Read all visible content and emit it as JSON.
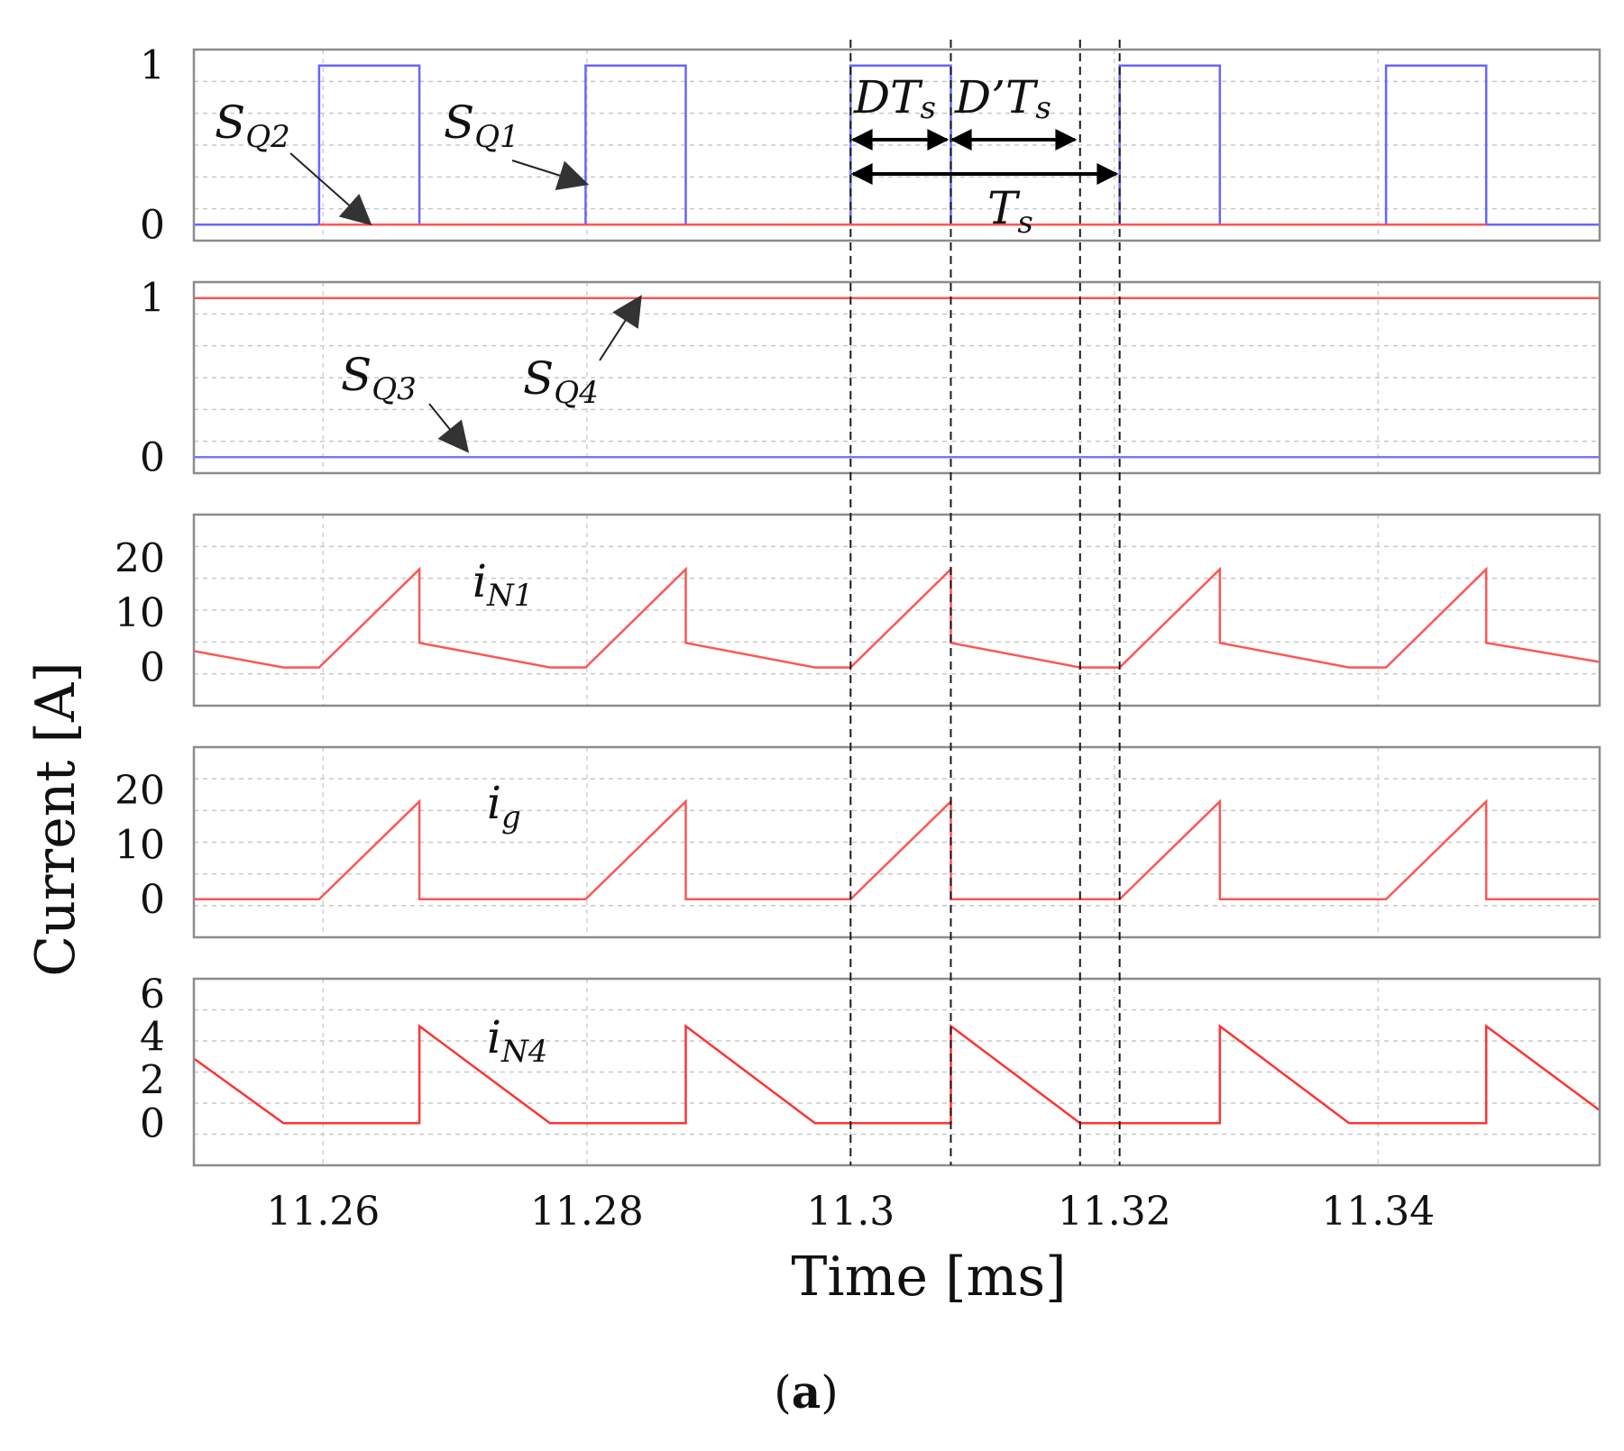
{
  "figure_caption": "a",
  "chart_data": {
    "type": "line",
    "xlabel": "Time [ms]",
    "ylabel": "Current [A]",
    "xlim": [
      11.2502,
      11.3568
    ],
    "xticks": [
      "11.26",
      "11.28",
      "11.3",
      "11.32",
      "11.34"
    ],
    "xtick_values": [
      11.26,
      11.28,
      11.3,
      11.32,
      11.34
    ],
    "period_markers": [
      11.3,
      11.3076,
      11.3174,
      11.3204
    ],
    "period_annotations": {
      "DTs": {
        "base": "DT",
        "sub": "s"
      },
      "DpTs": {
        "base": "D’T",
        "sub": "s"
      },
      "Ts": {
        "base": "T",
        "sub": "s"
      }
    },
    "panels": [
      {
        "id": "switching-q1-q2",
        "ylim": [
          -0.1,
          1.1
        ],
        "yticks": [
          "1",
          "0"
        ],
        "ytick_values": [
          1,
          0
        ],
        "series": [
          {
            "name": "SQ1",
            "base": "S",
            "sub": "Q1",
            "color": "#6666ff",
            "points": [
              [
                11.2502,
                0
              ],
              [
                11.2597,
                0
              ],
              [
                11.2597,
                1
              ],
              [
                11.2673,
                1
              ],
              [
                11.2673,
                0
              ],
              [
                11.2799,
                0
              ],
              [
                11.2799,
                1
              ],
              [
                11.2875,
                1
              ],
              [
                11.2875,
                0
              ],
              [
                11.3,
                0
              ],
              [
                11.3,
                1
              ],
              [
                11.3076,
                1
              ],
              [
                11.3076,
                0
              ],
              [
                11.3204,
                0
              ],
              [
                11.3204,
                1
              ],
              [
                11.328,
                1
              ],
              [
                11.328,
                0
              ],
              [
                11.3406,
                0
              ],
              [
                11.3406,
                1
              ],
              [
                11.3482,
                1
              ],
              [
                11.3482,
                0
              ],
              [
                11.3568,
                0
              ]
            ]
          },
          {
            "name": "SQ2",
            "base": "S",
            "sub": "Q2",
            "color": "#ff5555",
            "points": [
              [
                11.2597,
                0
              ],
              [
                11.2673,
                0
              ],
              [
                11.2799,
                0
              ],
              [
                11.2875,
                0
              ],
              [
                11.3,
                0
              ],
              [
                11.3076,
                0
              ],
              [
                11.3204,
                0
              ],
              [
                11.328,
                0
              ],
              [
                11.3406,
                0
              ],
              [
                11.3482,
                0
              ]
            ]
          }
        ]
      },
      {
        "id": "switching-q3-q4",
        "ylim": [
          -0.1,
          1.1
        ],
        "yticks": [
          "1",
          "0"
        ],
        "ytick_values": [
          1,
          0
        ],
        "series": [
          {
            "name": "SQ4",
            "base": "S",
            "sub": "Q4",
            "color": "#ff5555",
            "points": [
              [
                11.2502,
                1
              ],
              [
                11.3568,
                1
              ]
            ]
          },
          {
            "name": "SQ3",
            "base": "S",
            "sub": "Q3",
            "color": "#7777ff",
            "points": [
              [
                11.2502,
                0
              ],
              [
                11.3568,
                0
              ]
            ]
          }
        ]
      },
      {
        "id": "current-iN1",
        "ylim": [
          -7,
          28
        ],
        "yticks": [
          "20",
          "10",
          "0"
        ],
        "ytick_values": [
          20,
          10,
          0
        ],
        "series": [
          {
            "name": "iN1",
            "base": "i",
            "sub": "N1",
            "color": "#ff5555",
            "points": [
              [
                11.2502,
                3.0
              ],
              [
                11.257,
                0
              ],
              [
                11.2597,
                0
              ],
              [
                11.2673,
                18.0
              ],
              [
                11.2673,
                4.5
              ],
              [
                11.2772,
                0
              ],
              [
                11.2799,
                0
              ],
              [
                11.2875,
                18.0
              ],
              [
                11.2875,
                4.5
              ],
              [
                11.2973,
                0
              ],
              [
                11.3,
                0
              ],
              [
                11.3076,
                18.0
              ],
              [
                11.3076,
                4.5
              ],
              [
                11.3174,
                0
              ],
              [
                11.3204,
                0
              ],
              [
                11.328,
                18.0
              ],
              [
                11.328,
                4.5
              ],
              [
                11.3378,
                0
              ],
              [
                11.3406,
                0
              ],
              [
                11.3482,
                18.0
              ],
              [
                11.3482,
                4.5
              ],
              [
                11.3568,
                1.0
              ]
            ]
          }
        ]
      },
      {
        "id": "current-ig",
        "ylim": [
          -7,
          28
        ],
        "yticks": [
          "20",
          "10",
          "0"
        ],
        "ytick_values": [
          20,
          10,
          0
        ],
        "series": [
          {
            "name": "ig",
            "base": "i",
            "sub": "g",
            "color": "#ff5555",
            "points": [
              [
                11.2502,
                0
              ],
              [
                11.2597,
                0
              ],
              [
                11.2673,
                18.0
              ],
              [
                11.2673,
                0
              ],
              [
                11.2799,
                0
              ],
              [
                11.2875,
                18.0
              ],
              [
                11.2875,
                0
              ],
              [
                11.3,
                0
              ],
              [
                11.3076,
                18.0
              ],
              [
                11.3076,
                0
              ],
              [
                11.3204,
                0
              ],
              [
                11.328,
                18.0
              ],
              [
                11.328,
                0
              ],
              [
                11.3406,
                0
              ],
              [
                11.3482,
                18.0
              ],
              [
                11.3482,
                0
              ],
              [
                11.3568,
                0
              ]
            ]
          }
        ]
      },
      {
        "id": "current-iN4",
        "ylim": [
          -1.95,
          6.7
        ],
        "yticks": [
          "6",
          "4",
          "2",
          "0"
        ],
        "ytick_values": [
          6,
          4,
          2,
          0
        ],
        "series": [
          {
            "name": "iN4",
            "base": "i",
            "sub": "N4",
            "color": "#ff3333",
            "points": [
              [
                11.2502,
                3.0
              ],
              [
                11.257,
                0
              ],
              [
                11.2673,
                0
              ],
              [
                11.2673,
                4.5
              ],
              [
                11.2772,
                0
              ],
              [
                11.2875,
                0
              ],
              [
                11.2875,
                4.5
              ],
              [
                11.2973,
                0
              ],
              [
                11.3076,
                0
              ],
              [
                11.3076,
                4.5
              ],
              [
                11.3174,
                0
              ],
              [
                11.328,
                0
              ],
              [
                11.328,
                4.5
              ],
              [
                11.3378,
                0
              ],
              [
                11.3482,
                0
              ],
              [
                11.3482,
                4.5
              ],
              [
                11.3568,
                0.6
              ]
            ]
          }
        ]
      }
    ]
  }
}
